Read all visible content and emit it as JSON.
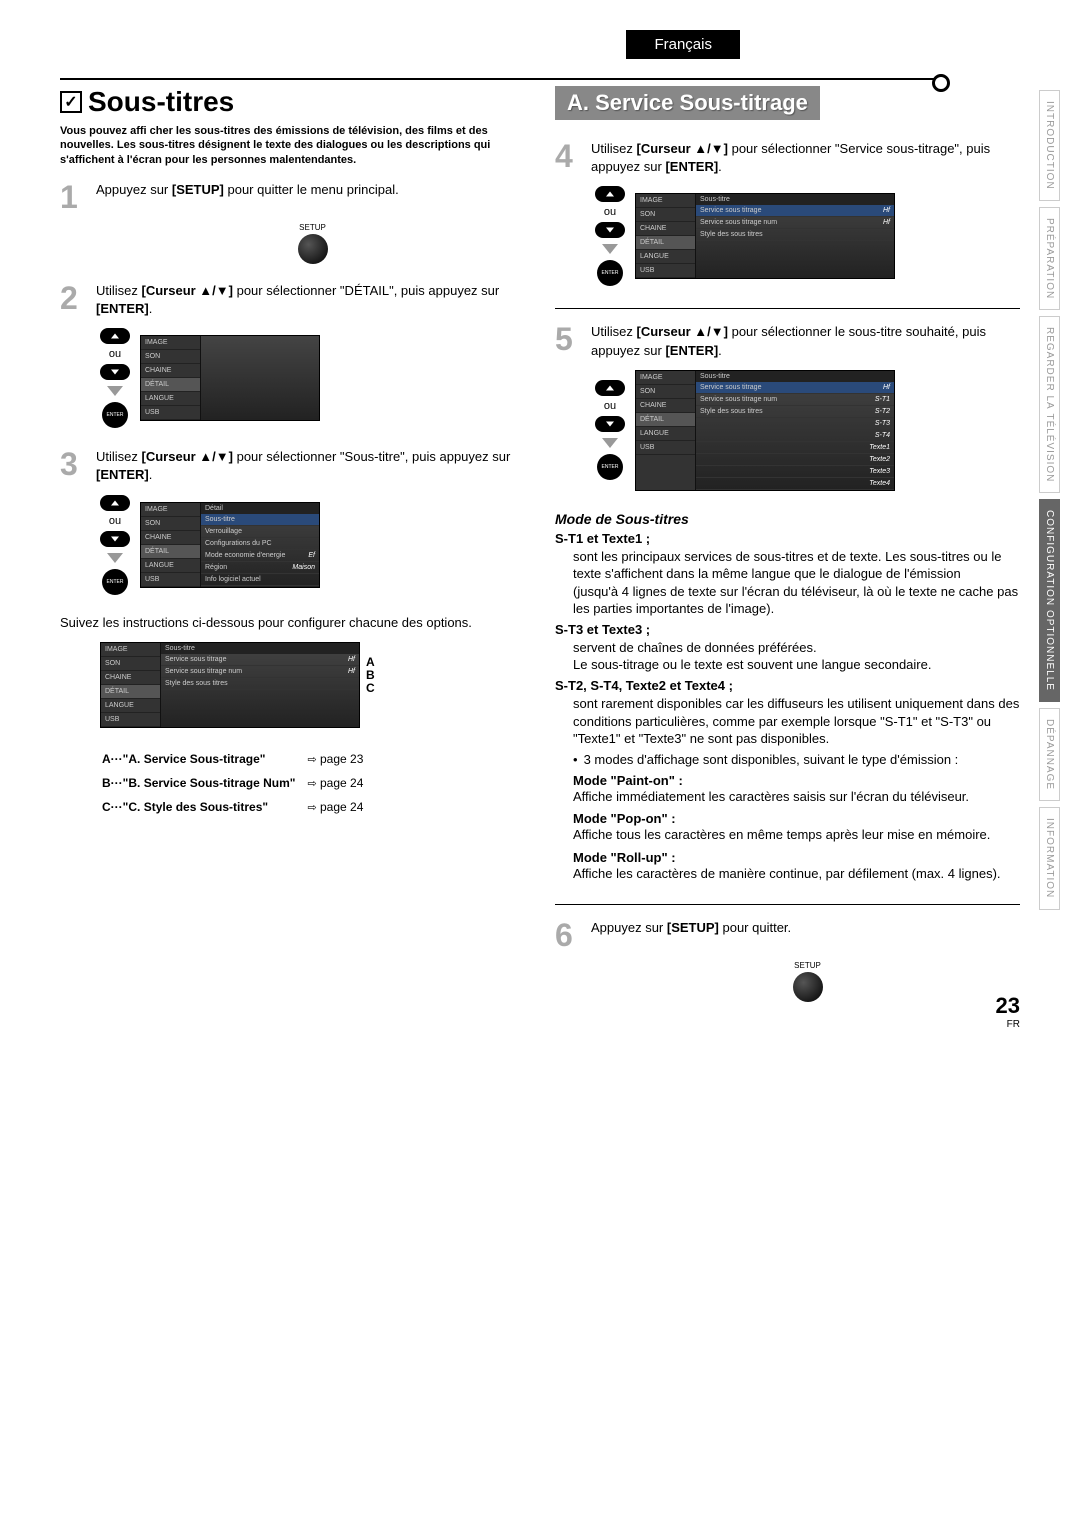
{
  "header": {
    "language": "Français"
  },
  "side_tabs": [
    {
      "label": "INTRODUCTION",
      "active": false
    },
    {
      "label": "PRÉPARATION",
      "active": false
    },
    {
      "label": "REGARDER LA",
      "sub": "TÉLÉVISION",
      "active": false
    },
    {
      "label": "CONFIGURATION",
      "sub": "OPTIONNELLE",
      "active": true
    },
    {
      "label": "DÉPANNAGE",
      "active": false
    },
    {
      "label": "INFORMATION",
      "active": false
    }
  ],
  "left": {
    "title": "Sous-titres",
    "intro": "Vous pouvez affi cher les sous-titres des émissions de télévision, des films et des nouvelles. Les sous-titres désignent le texte des dialogues ou les descriptions qui s'affichent à l'écran pour les personnes malentendantes.",
    "step1": {
      "num": "1",
      "text_a": "Appuyez sur ",
      "b": "[SETUP]",
      "text_b": " pour quitter le menu principal."
    },
    "setup_label": "SETUP",
    "step2": {
      "num": "2",
      "text_a": "Utilisez ",
      "b": "[Curseur ▲/▼]",
      "text_b": " pour sélectionner \"DÉTAIL\", puis appuyez sur ",
      "b2": "[ENTER]",
      "text_c": "."
    },
    "ou": "ou",
    "enter": "ENTER",
    "menu_left": [
      "IMAGE",
      "SON",
      "CHAINE",
      "DÉTAIL",
      "LANGUE",
      "USB"
    ],
    "step3": {
      "num": "3",
      "text_a": "Utilisez ",
      "b": "[Curseur ▲/▼]",
      "text_b": " pour sélectionner \"Sous-titre\", puis appuyez sur ",
      "b2": "[ENTER]",
      "text_c": "."
    },
    "menu3_header": "Détail",
    "menu3_items": [
      {
        "l": "Sous-titre",
        "v": "",
        "hl": true
      },
      {
        "l": "Verrouillage",
        "v": ""
      },
      {
        "l": "Configurations du PC",
        "v": ""
      },
      {
        "l": "Mode economie d'energie",
        "v": "Ef"
      },
      {
        "l": "Région",
        "v": "Maison"
      },
      {
        "l": "Info logiciel actuel",
        "v": ""
      }
    ],
    "follow": "Suivez les instructions ci-dessous pour configurer chacune des options.",
    "menu4_header": "Sous-titre",
    "menu4_items": [
      {
        "l": "Service sous titrage",
        "v": "Hf"
      },
      {
        "l": "Service sous titrage num",
        "v": "Hf"
      },
      {
        "l": "Style des sous titres",
        "v": ""
      }
    ],
    "abc": "A\nB\nC",
    "refs": [
      {
        "k": "A",
        "t": "\"A. Service Sous-titrage\"",
        "p": "page 23"
      },
      {
        "k": "B",
        "t": "\"B. Service Sous-titrage Num\"",
        "p": "page 24"
      },
      {
        "k": "C",
        "t": "\"C. Style des Sous-titres\"",
        "p": "page 24"
      }
    ]
  },
  "right": {
    "title": "A.  Service Sous-titrage",
    "step4": {
      "num": "4",
      "text_a": "Utilisez ",
      "b": "[Curseur ▲/▼]",
      "text_b": " pour sélectionner \"Service sous-titrage\", puis appuyez sur ",
      "b2": "[ENTER]",
      "text_c": "."
    },
    "menu4_items": [
      {
        "l": "Service sous titrage",
        "v": "Hf",
        "hl": true
      },
      {
        "l": "Service sous titrage num",
        "v": "Hf"
      },
      {
        "l": "Style des sous titres",
        "v": ""
      }
    ],
    "step5": {
      "num": "5",
      "text_a": "Utilisez ",
      "b": "[Curseur ▲/▼]",
      "text_b": " pour sélectionner le sous-titre souhaité, puis appuyez sur ",
      "b2": "[ENTER]",
      "text_c": "."
    },
    "menu5_items": [
      {
        "l": "Service sous titrage",
        "v": "Hf",
        "hl": true
      },
      {
        "l": "Service sous titrage num",
        "v": "S-T1"
      },
      {
        "l": "Style des sous titres",
        "v": "S-T2"
      },
      {
        "l": "",
        "v": "S-T3"
      },
      {
        "l": "",
        "v": "S-T4"
      },
      {
        "l": "",
        "v": "Texte1"
      },
      {
        "l": "",
        "v": "Texte2"
      },
      {
        "l": "",
        "v": "Texte3"
      },
      {
        "l": "",
        "v": "Texte4"
      }
    ],
    "mode_title": "Mode de Sous-titres",
    "st1_head": "S-T1 et Texte1 ;",
    "st1_body": "sont les principaux services de sous-titres et de texte. Les sous-titres ou le texte s'affichent dans la même langue que le dialogue de l'émission\n(jusqu'à 4 lignes de texte sur l'écran du téléviseur, là où le texte ne cache pas les parties importantes de l'image).",
    "st3_head": "S-T3 et Texte3 ;",
    "st3_body": "servent de chaînes de données préférées.\nLe sous-titrage ou le texte est souvent une langue secondaire.",
    "st2_head": "S-T2, S-T4, Texte2 et Texte4 ;",
    "st2_body": "sont rarement disponibles car les diffuseurs les utilisent uniquement dans des conditions particulières, comme par exemple lorsque \"S-T1\" et \"S-T3\" ou \"Texte1\" et \"Texte3\" ne sont pas disponibles.",
    "bullet": "3 modes d'affichage sont disponibles, suivant le type d'émission :",
    "paint_h": "Mode \"Paint-on\" :",
    "paint_b": "Affiche immédiatement les caractères saisis sur l'écran du téléviseur.",
    "pop_h": "Mode \"Pop-on\" :",
    "pop_b": "Affiche tous les caractères en même temps après leur mise en mémoire.",
    "roll_h": "Mode \"Roll-up\" :",
    "roll_b": "Affiche les caractères de manière continue, par défilement (max. 4 lignes).",
    "step6": {
      "num": "6",
      "text_a": "Appuyez sur ",
      "b": "[SETUP]",
      "text_b": " pour quitter."
    }
  },
  "page": {
    "num": "23",
    "lang": "FR"
  }
}
